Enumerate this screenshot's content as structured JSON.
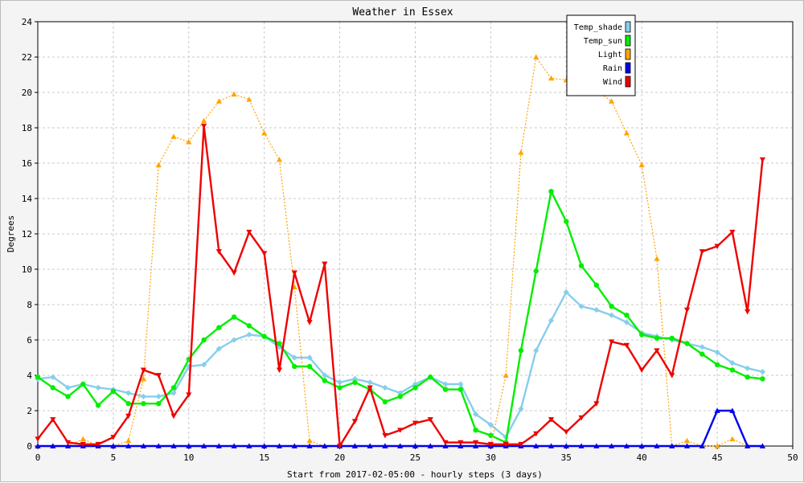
{
  "chart_data": {
    "type": "line",
    "title": "Weather in Essex",
    "xlabel": "Start from 2017-02-05:00 - hourly steps (3 days)",
    "ylabel": "Degrees",
    "xlim": [
      0,
      50
    ],
    "ylim": [
      0,
      24
    ],
    "xticks": [
      0,
      5,
      10,
      15,
      20,
      25,
      30,
      35,
      40,
      45,
      50
    ],
    "yticks": [
      0,
      2,
      4,
      6,
      8,
      10,
      12,
      14,
      16,
      18,
      20,
      22,
      24
    ],
    "grid": true,
    "legend_position": "top-right",
    "x": [
      0,
      1,
      2,
      3,
      4,
      5,
      6,
      7,
      8,
      9,
      10,
      11,
      12,
      13,
      14,
      15,
      16,
      17,
      18,
      19,
      20,
      21,
      22,
      23,
      24,
      25,
      26,
      27,
      28,
      29,
      30,
      31,
      32,
      33,
      34,
      35,
      36,
      37,
      38,
      39,
      40,
      41,
      42,
      43,
      44,
      45,
      46,
      47,
      48
    ],
    "series": [
      {
        "name": "Temp_shade",
        "color": "#87ceeb",
        "marker": "diamond",
        "style": "solid",
        "values": [
          3.8,
          3.9,
          3.3,
          3.5,
          3.3,
          3.2,
          3.0,
          2.8,
          2.8,
          3.0,
          4.5,
          4.6,
          5.5,
          6.0,
          6.3,
          6.2,
          5.6,
          5.0,
          5.0,
          4.0,
          3.6,
          3.8,
          3.6,
          3.3,
          3.0,
          3.5,
          3.9,
          3.5,
          3.5,
          1.8,
          1.2,
          0.5,
          2.1,
          5.4,
          7.1,
          8.7,
          7.9,
          7.7,
          7.4,
          7.0,
          6.4,
          6.2,
          6.0,
          5.8,
          5.6,
          5.3,
          4.7,
          4.4,
          4.2
        ]
      },
      {
        "name": "Temp_sun",
        "color": "#00ee00",
        "marker": "circle",
        "style": "solid",
        "values": [
          3.9,
          3.3,
          2.8,
          3.5,
          2.3,
          3.1,
          2.4,
          2.4,
          2.4,
          3.3,
          4.9,
          6.0,
          6.7,
          7.3,
          6.8,
          6.2,
          5.8,
          4.5,
          4.5,
          3.7,
          3.3,
          3.6,
          3.2,
          2.5,
          2.8,
          3.3,
          3.9,
          3.2,
          3.2,
          0.9,
          0.6,
          0.2,
          5.4,
          9.9,
          14.4,
          12.7,
          10.2,
          9.1,
          7.9,
          7.4,
          6.3,
          6.1,
          6.1,
          5.8,
          5.2,
          4.6,
          4.3,
          3.9,
          3.8
        ]
      },
      {
        "name": "Light",
        "color": "#ffa500",
        "marker": "triangle-up",
        "style": "dotted",
        "values": [
          0,
          0,
          0,
          0.4,
          0,
          0,
          0.3,
          3.8,
          15.9,
          17.5,
          17.2,
          18.4,
          19.5,
          19.9,
          19.6,
          17.7,
          16.2,
          9.0,
          0.3,
          0,
          0,
          0,
          0,
          0,
          0,
          0,
          0,
          0,
          0,
          0,
          0,
          4.0,
          16.6,
          22.0,
          20.8,
          20.7,
          20.5,
          20.1,
          19.5,
          17.7,
          15.9,
          10.6,
          0,
          0.3,
          0,
          0,
          0.4,
          0,
          0
        ]
      },
      {
        "name": "Rain",
        "color": "#0000ee",
        "marker": "triangle-up",
        "style": "solid",
        "values": [
          0,
          0,
          0,
          0,
          0,
          0,
          0,
          0,
          0,
          0,
          0,
          0,
          0,
          0,
          0,
          0,
          0,
          0,
          0,
          0,
          0,
          0,
          0,
          0,
          0,
          0,
          0,
          0,
          0,
          0,
          0,
          0,
          0,
          0,
          0,
          0,
          0,
          0,
          0,
          0,
          0,
          0,
          0,
          0,
          0,
          2.0,
          2.0,
          0,
          0
        ]
      },
      {
        "name": "Wind",
        "color": "#ee0000",
        "marker": "triangle-down",
        "style": "solid",
        "values": [
          0.4,
          1.5,
          0.2,
          0.1,
          0.1,
          0.5,
          1.7,
          4.3,
          4.0,
          1.7,
          2.9,
          18.1,
          11.0,
          9.8,
          12.1,
          10.9,
          4.3,
          9.8,
          7.0,
          10.3,
          0,
          1.4,
          3.3,
          0.6,
          0.9,
          1.3,
          1.5,
          0.2,
          0.2,
          0.2,
          0.1,
          0.1,
          0.1,
          0.7,
          1.5,
          0.8,
          1.6,
          2.4,
          5.9,
          5.7,
          4.3,
          5.4,
          4.0,
          7.7,
          11.0,
          11.3,
          12.1,
          7.6,
          16.2
        ]
      }
    ]
  }
}
